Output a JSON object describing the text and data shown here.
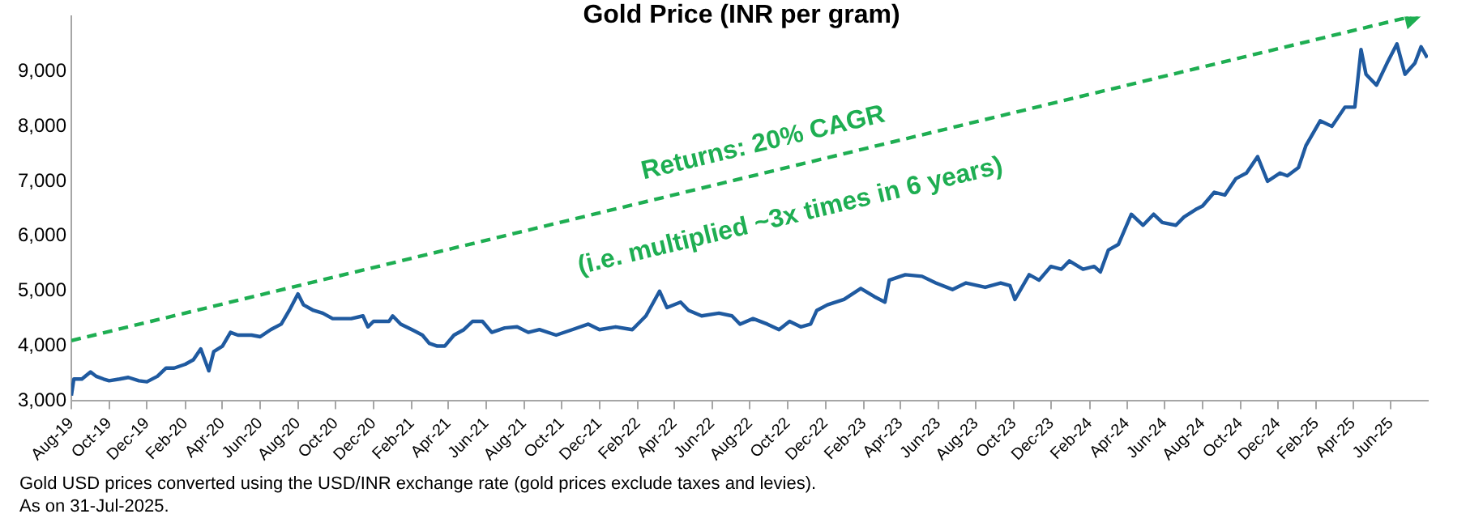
{
  "chart_data": {
    "type": "line",
    "title": "Gold Price (INR per gram)",
    "annotations": [
      "Returns: 20% CAGR",
      "(i.e. multiplied ~3x times in 6 years)",
      "Gold USD prices converted using the USD/INR exchange rate (gold prices exclude taxes and levies).",
      "As on 31-Jul-2025."
    ],
    "x": [
      "2019-08-01",
      "2019-08-05",
      "2019-08-18",
      "2019-09-01",
      "2019-09-10",
      "2019-09-22",
      "2019-10-01",
      "2019-10-18",
      "2019-11-01",
      "2019-11-18",
      "2019-12-01",
      "2019-12-18",
      "2020-01-01",
      "2020-01-14",
      "2020-02-01",
      "2020-02-14",
      "2020-02-26",
      "2020-03-10",
      "2020-03-18",
      "2020-04-01",
      "2020-04-14",
      "2020-04-26",
      "2020-05-18",
      "2020-06-01",
      "2020-06-18",
      "2020-07-05",
      "2020-07-18",
      "2020-08-01",
      "2020-08-10",
      "2020-08-26",
      "2020-09-10",
      "2020-09-26",
      "2020-10-26",
      "2020-11-14",
      "2020-11-22",
      "2020-12-01",
      "2020-12-26",
      "2021-01-01",
      "2021-01-14",
      "2021-02-01",
      "2021-02-18",
      "2021-03-01",
      "2021-03-14",
      "2021-03-26",
      "2021-04-10",
      "2021-04-26",
      "2021-05-10",
      "2021-05-26",
      "2021-06-10",
      "2021-07-01",
      "2021-07-21",
      "2021-08-08",
      "2021-08-26",
      "2021-09-22",
      "2021-10-18",
      "2021-11-13",
      "2021-12-01",
      "2021-12-27",
      "2022-01-23",
      "2022-02-14",
      "2022-03-08",
      "2022-03-20",
      "2022-04-11",
      "2022-04-24",
      "2022-05-15",
      "2022-06-12",
      "2022-07-03",
      "2022-07-16",
      "2022-08-06",
      "2022-08-29",
      "2022-09-17",
      "2022-10-04",
      "2022-10-22",
      "2022-11-07",
      "2022-11-17",
      "2022-12-04",
      "2022-12-31",
      "2023-01-27",
      "2023-02-18",
      "2023-03-07",
      "2023-03-14",
      "2023-04-09",
      "2023-05-06",
      "2023-05-28",
      "2023-06-24",
      "2023-07-16",
      "2023-08-16",
      "2023-09-10",
      "2023-09-25",
      "2023-10-03",
      "2023-10-26",
      "2023-11-11",
      "2023-11-30",
      "2023-12-17",
      "2023-12-30",
      "2024-01-21",
      "2024-02-08",
      "2024-02-18",
      "2024-03-02",
      "2024-03-18",
      "2024-04-08",
      "2024-04-27",
      "2024-05-14",
      "2024-05-28",
      "2024-06-19",
      "2024-07-02",
      "2024-07-23",
      "2024-08-01",
      "2024-08-20",
      "2024-09-06",
      "2024-09-24",
      "2024-10-11",
      "2024-10-29",
      "2024-11-14",
      "2024-12-04",
      "2024-12-16",
      "2025-01-03",
      "2025-01-15",
      "2025-02-07",
      "2025-02-26",
      "2025-03-19",
      "2025-04-04",
      "2025-04-14",
      "2025-04-22",
      "2025-05-09",
      "2025-05-26",
      "2025-06-11",
      "2025-06-24",
      "2025-07-10",
      "2025-07-20",
      "2025-07-30"
    ],
    "series": [
      {
        "color": "#1f5aa0",
        "values": [
          3100,
          3400,
          3400,
          3530,
          3450,
          3400,
          3370,
          3400,
          3430,
          3370,
          3350,
          3450,
          3600,
          3600,
          3670,
          3750,
          3950,
          3550,
          3900,
          4000,
          4250,
          4200,
          4200,
          4170,
          4300,
          4400,
          4650,
          4950,
          4750,
          4650,
          4600,
          4500,
          4500,
          4550,
          4350,
          4450,
          4450,
          4550,
          4400,
          4300,
          4200,
          4050,
          4000,
          4000,
          4200,
          4300,
          4450,
          4450,
          4250,
          4330,
          4350,
          4250,
          4300,
          4200,
          4300,
          4400,
          4300,
          4350,
          4300,
          4550,
          5000,
          4700,
          4800,
          4650,
          4550,
          4600,
          4550,
          4400,
          4500,
          4400,
          4300,
          4450,
          4350,
          4400,
          4650,
          4750,
          4850,
          5050,
          4900,
          4800,
          5200,
          5300,
          5270,
          5150,
          5030,
          5150,
          5070,
          5150,
          5100,
          4850,
          5300,
          5200,
          5450,
          5400,
          5550,
          5400,
          5450,
          5350,
          5750,
          5850,
          6400,
          6200,
          6400,
          6250,
          6200,
          6350,
          6500,
          6550,
          6800,
          6750,
          7050,
          7150,
          7450,
          7000,
          7150,
          7100,
          7250,
          7650,
          8100,
          8000,
          8350,
          8350,
          9400,
          8950,
          8750,
          9150,
          9500,
          8950,
          9150,
          9450,
          9250
        ]
      },
      {
        "type": "line",
        "color": "#1eae52",
        "line_style": "dashed",
        "marker": "triangle",
        "x": [
          "2019-08-01",
          "2025-07-04"
        ],
        "values": [
          4100,
          10000
        ]
      }
    ],
    "xlim": [
      "2019-08-01",
      "2025-07-31"
    ],
    "xticks": [
      {
        "value": "2019-08-01",
        "label": "Aug-19"
      },
      {
        "value": "2019-10-01",
        "label": "Oct-19"
      },
      {
        "value": "2019-12-01",
        "label": "Dec-19"
      },
      {
        "value": "2020-02-01",
        "label": "Feb-20"
      },
      {
        "value": "2020-04-01",
        "label": "Apr-20"
      },
      {
        "value": "2020-06-01",
        "label": "Jun-20"
      },
      {
        "value": "2020-08-01",
        "label": "Aug-20"
      },
      {
        "value": "2020-10-01",
        "label": "Oct-20"
      },
      {
        "value": "2020-12-01",
        "label": "Dec-20"
      },
      {
        "value": "2021-02-01",
        "label": "Feb-21"
      },
      {
        "value": "2021-04-01",
        "label": "Apr-21"
      },
      {
        "value": "2021-06-01",
        "label": "Jun-21"
      },
      {
        "value": "2021-08-01",
        "label": "Aug-21"
      },
      {
        "value": "2021-10-01",
        "label": "Oct-21"
      },
      {
        "value": "2021-12-01",
        "label": "Dec-21"
      },
      {
        "value": "2022-02-01",
        "label": "Feb-22"
      },
      {
        "value": "2022-04-01",
        "label": "Apr-22"
      },
      {
        "value": "2022-06-01",
        "label": "Jun-22"
      },
      {
        "value": "2022-08-01",
        "label": "Aug-22"
      },
      {
        "value": "2022-10-01",
        "label": "Oct-22"
      },
      {
        "value": "2022-12-01",
        "label": "Dec-22"
      },
      {
        "value": "2023-02-01",
        "label": "Feb-23"
      },
      {
        "value": "2023-04-01",
        "label": "Apr-23"
      },
      {
        "value": "2023-06-01",
        "label": "Jun-23"
      },
      {
        "value": "2023-08-01",
        "label": "Aug-23"
      },
      {
        "value": "2023-10-01",
        "label": "Oct-23"
      },
      {
        "value": "2023-12-01",
        "label": "Dec-23"
      },
      {
        "value": "2024-02-01",
        "label": "Feb-24"
      },
      {
        "value": "2024-04-01",
        "label": "Apr-24"
      },
      {
        "value": "2024-06-01",
        "label": "Jun-24"
      },
      {
        "value": "2024-08-01",
        "label": "Aug-24"
      },
      {
        "value": "2024-10-01",
        "label": "Oct-24"
      },
      {
        "value": "2024-12-01",
        "label": "Dec-24"
      },
      {
        "value": "2025-02-01",
        "label": "Feb-25"
      },
      {
        "value": "2025-04-01",
        "label": "Apr-25"
      },
      {
        "value": "2025-06-01",
        "label": "Jun-25"
      }
    ],
    "ylim": [
      3000,
      10000
    ],
    "yticks": [
      {
        "value": 3000,
        "label": "3,000"
      },
      {
        "value": 4000,
        "label": "4,000"
      },
      {
        "value": 5000,
        "label": "5,000"
      },
      {
        "value": 6000,
        "label": "6,000"
      },
      {
        "value": 7000,
        "label": "7,000"
      },
      {
        "value": 8000,
        "label": "8,000"
      },
      {
        "value": 9000,
        "label": "9,000"
      }
    ],
    "grid": false,
    "legend": false,
    "marker": "none",
    "line_style": "solid"
  }
}
